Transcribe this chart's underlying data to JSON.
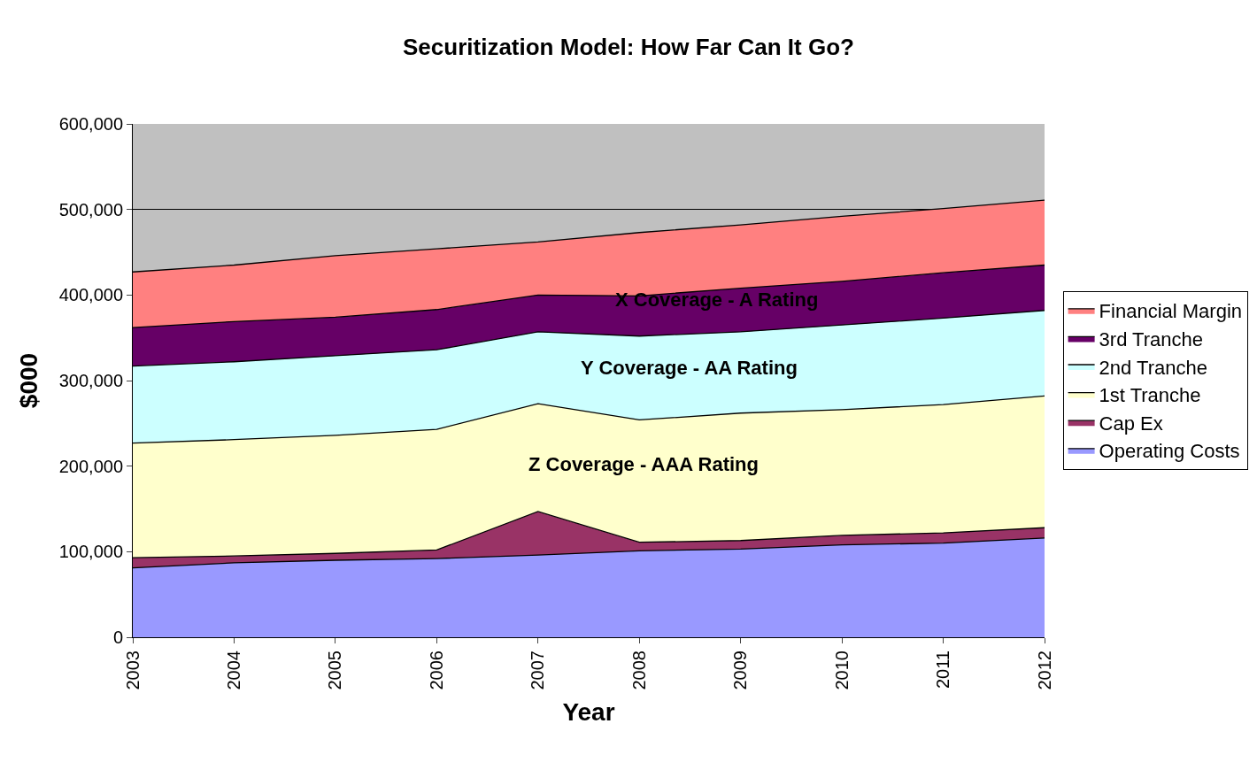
{
  "chart_data": {
    "type": "area",
    "stacked": true,
    "title": "Securitization Model: How Far Can It Go?",
    "xlabel": "Year",
    "ylabel": "$000",
    "x": [
      2003,
      2004,
      2005,
      2006,
      2007,
      2008,
      2009,
      2010,
      2011,
      2012
    ],
    "xlim": [
      2003,
      2012
    ],
    "xticks": [
      2003,
      2004,
      2005,
      2006,
      2007,
      2008,
      2009,
      2010,
      2011,
      2012
    ],
    "ylim": [
      0,
      600000
    ],
    "yticks": [
      0,
      {
        "value": 100000,
        "label": "100,000"
      },
      {
        "value": 200000,
        "label": "200,000"
      },
      {
        "value": 300000,
        "label": "300,000"
      },
      {
        "value": 400000,
        "label": "400,000"
      },
      {
        "value": 500000,
        "label": "500,000"
      },
      {
        "value": 600000,
        "label": "600,000"
      }
    ],
    "grid": "y",
    "legend": "right",
    "series": [
      {
        "name": "Operating Costs",
        "color": "#9999ff",
        "values": [
          81000,
          87000,
          90000,
          92000,
          96000,
          101000,
          103000,
          108000,
          110000,
          116000
        ]
      },
      {
        "name": "Cap Ex",
        "color": "#993366",
        "values": [
          12000,
          8000,
          8000,
          10000,
          51000,
          10000,
          10000,
          11000,
          12000,
          12000
        ]
      },
      {
        "name": "1st Tranche",
        "color": "#ffffcc",
        "values": [
          134000,
          136000,
          138000,
          141000,
          126000,
          143000,
          149000,
          147000,
          150000,
          154000
        ]
      },
      {
        "name": "2nd Tranche",
        "color": "#ccffff",
        "values": [
          90000,
          91000,
          93000,
          93000,
          84000,
          98000,
          95000,
          99000,
          101000,
          100000
        ]
      },
      {
        "name": "3rd Tranche",
        "color": "#660066",
        "values": [
          45000,
          47000,
          45000,
          47000,
          43000,
          47000,
          51000,
          51000,
          53000,
          53000
        ]
      },
      {
        "name": "Financial Margin",
        "color": "#ff8080",
        "values": [
          65000,
          66000,
          72000,
          71000,
          62000,
          74000,
          74000,
          76000,
          75000,
          76000
        ]
      }
    ],
    "annotations": [
      "X Coverage - A Rating",
      "Y Coverage - AA Rating",
      "Z Coverage - AAA Rating"
    ]
  }
}
